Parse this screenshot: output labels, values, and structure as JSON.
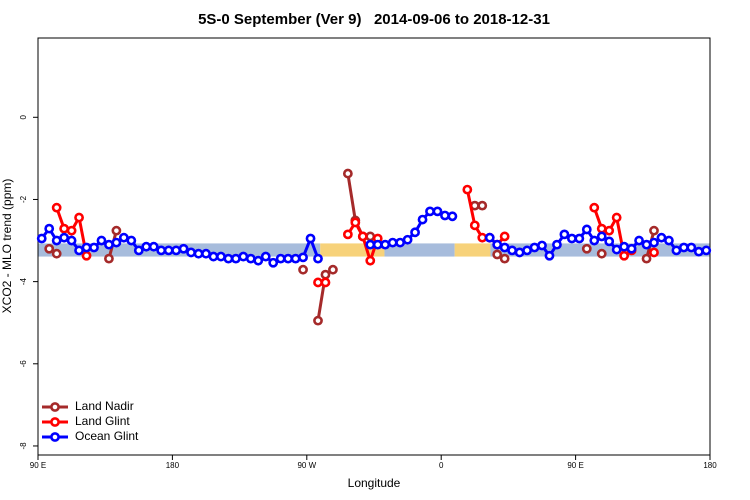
{
  "chart_data": {
    "type": "line",
    "title": "5S-0 September (Ver 9)   2014-09-06 to 2018-12-31",
    "x_label": "Longitude",
    "y_label": "XCO2 - MLO trend (ppm)",
    "xlim": [
      90,
      540
    ],
    "xticks": [
      {
        "value": 90,
        "label": "90 E"
      },
      180,
      {
        "value": 270,
        "label": "90 W"
      },
      {
        "value": 360,
        "label": "0"
      },
      {
        "value": 450,
        "label": "90 E"
      },
      {
        "value": 540,
        "label": "180"
      }
    ],
    "ylim": [
      -8.22,
      1.93
    ],
    "yticks": [
      0,
      -2,
      -4,
      -6,
      -8
    ],
    "grid": false,
    "legend": "bottomleft",
    "band": {
      "y": [
        -3.39,
        -3.07
      ],
      "segments": [
        {
          "x": [
            90,
            279
          ],
          "color": "#a7bcdc"
        },
        {
          "x": [
            279,
            322
          ],
          "color": "#f7d27a"
        },
        {
          "x": [
            322,
            369
          ],
          "color": "#a7bcdc"
        },
        {
          "x": [
            369,
            393
          ],
          "color": "#f7d27a"
        },
        {
          "x": [
            393,
            540
          ],
          "color": "#a7bcdc"
        }
      ]
    },
    "x": [
      92.5,
      97.5,
      102.5,
      107.5,
      112.5,
      117.5,
      122.5,
      127.5,
      132.5,
      137.5,
      142.5,
      147.5,
      152.5,
      157.5,
      162.5,
      167.5,
      172.5,
      177.5,
      182.5,
      187.5,
      192.5,
      197.5,
      202.5,
      207.5,
      212.5,
      217.5,
      222.5,
      227.5,
      232.5,
      237.5,
      242.5,
      247.5,
      252.5,
      257.5,
      262.5,
      267.5,
      272.5,
      277.5,
      282.5,
      287.5,
      292.5,
      297.5,
      302.5,
      307.5,
      312.5,
      317.5,
      322.5,
      327.5,
      332.5,
      337.5,
      342.5,
      347.5,
      352.5,
      357.5,
      362.5,
      367.5,
      372.5,
      377.5,
      382.5,
      387.5,
      392.5,
      397.5,
      402.5,
      407.5,
      412.5,
      417.5,
      422.5,
      427.5,
      432.5,
      437.5,
      442.5,
      447.5,
      452.5,
      457.5,
      462.5,
      467.5,
      472.5,
      477.5,
      482.5,
      487.5,
      492.5,
      497.5,
      502.5,
      507.5,
      512.5,
      517.5,
      522.5,
      527.5,
      532.5,
      537.5
    ],
    "series": [
      {
        "name": "Land Nadir",
        "color": "#a52a2a",
        "values": [
          null,
          -3.2,
          -3.32,
          null,
          null,
          null,
          null,
          null,
          null,
          -3.44,
          -2.76,
          null,
          null,
          null,
          null,
          null,
          null,
          null,
          null,
          null,
          null,
          null,
          null,
          null,
          null,
          null,
          null,
          null,
          null,
          null,
          null,
          null,
          null,
          null,
          null,
          -3.71,
          null,
          -4.95,
          -3.83,
          -3.71,
          null,
          -1.37,
          -2.51,
          -2.9,
          -2.9,
          null,
          null,
          null,
          null,
          null,
          null,
          null,
          null,
          null,
          null,
          null,
          null,
          null,
          -2.15,
          -2.15,
          null,
          -3.34,
          -3.44,
          null,
          null,
          null,
          null,
          null,
          null,
          null,
          null,
          null,
          null,
          -3.2,
          null,
          -3.32,
          null,
          null,
          null,
          null,
          null,
          -3.44,
          -2.76,
          null,
          null,
          null,
          null,
          null,
          null,
          null
        ]
      },
      {
        "name": "Land Glint",
        "color": "#ff0000",
        "values": [
          null,
          null,
          -2.2,
          -2.71,
          -2.76,
          -2.44,
          -3.37,
          null,
          null,
          null,
          null,
          null,
          null,
          null,
          null,
          null,
          null,
          null,
          null,
          null,
          null,
          null,
          null,
          null,
          null,
          null,
          null,
          null,
          null,
          null,
          null,
          null,
          null,
          null,
          null,
          null,
          null,
          -4.02,
          -4.02,
          null,
          null,
          -2.85,
          -2.56,
          -2.9,
          -3.49,
          -2.95,
          null,
          null,
          null,
          null,
          null,
          null,
          null,
          null,
          null,
          null,
          null,
          -1.76,
          -2.63,
          -2.93,
          -2.93,
          -3.1,
          -2.9,
          null,
          null,
          null,
          null,
          null,
          null,
          null,
          null,
          null,
          null,
          null,
          -2.2,
          -2.71,
          -2.76,
          -2.44,
          -3.37,
          -3.24,
          null,
          null,
          -3.29,
          null,
          null,
          null,
          null,
          null,
          null,
          null
        ]
      },
      {
        "name": "Ocean Glint",
        "color": "#0000ff",
        "values": [
          -2.95,
          -2.71,
          -3.0,
          -2.93,
          -3.0,
          -3.24,
          -3.17,
          -3.17,
          -3.0,
          -3.1,
          -3.05,
          -2.93,
          -3.0,
          -3.24,
          -3.15,
          -3.15,
          -3.24,
          -3.24,
          -3.24,
          -3.2,
          -3.29,
          -3.32,
          -3.32,
          -3.39,
          -3.39,
          -3.44,
          -3.44,
          -3.39,
          -3.44,
          -3.49,
          -3.39,
          -3.54,
          -3.44,
          -3.44,
          -3.44,
          -3.41,
          -2.95,
          -3.44,
          null,
          null,
          null,
          null,
          null,
          null,
          -3.1,
          -3.1,
          -3.1,
          -3.05,
          -3.05,
          -2.98,
          -2.8,
          -2.49,
          -2.29,
          -2.29,
          -2.39,
          -2.41,
          null,
          null,
          null,
          null,
          -2.93,
          -3.1,
          -3.17,
          -3.24,
          -3.29,
          -3.24,
          -3.17,
          -3.12,
          -3.37,
          -3.1,
          -2.85,
          -2.95,
          -2.95,
          -2.73,
          -3.0,
          -2.9,
          -3.02,
          -3.22,
          -3.15,
          -3.2,
          -3.0,
          -3.1,
          -3.05,
          -2.93,
          -3.0,
          -3.24,
          -3.17,
          -3.17,
          -3.27,
          -3.24
        ]
      }
    ]
  }
}
